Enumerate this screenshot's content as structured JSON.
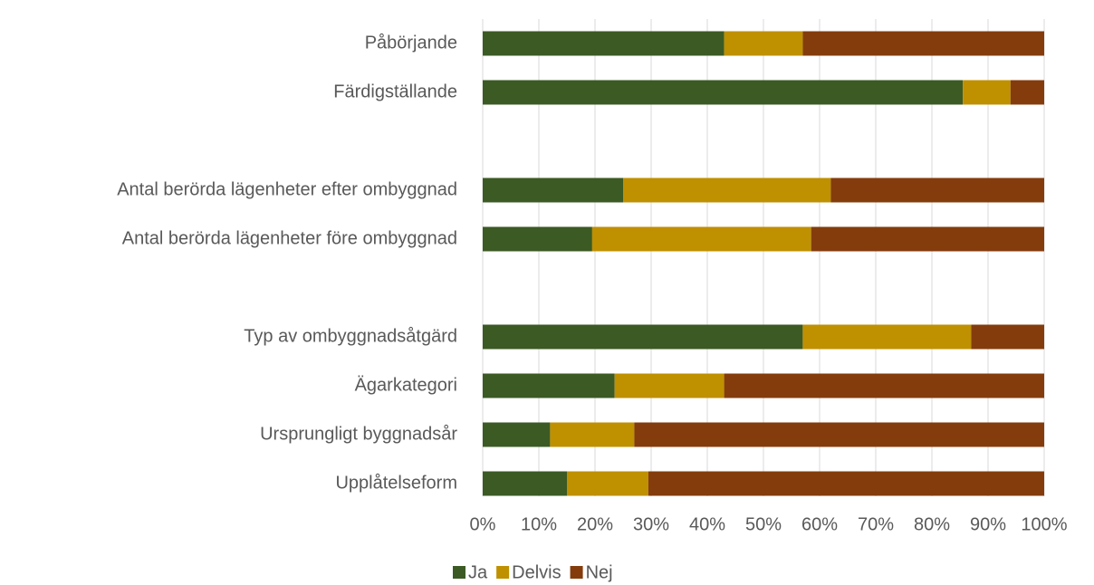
{
  "chart_data": {
    "type": "stacked-barh",
    "categories": [
      "Påbörjande",
      "Färdigställande",
      null,
      "Antal berörda lägenheter efter ombyggnad",
      "Antal berörda lägenheter före ombyggnad",
      null,
      "Typ av ombyggnadsåtgärd",
      "Ägarkategori",
      "Ursprungligt byggnadsår",
      "Upplåtelseform"
    ],
    "series": [
      {
        "name": "Ja",
        "color": "#3b5a24",
        "values": [
          43,
          85.5,
          null,
          25,
          19.5,
          null,
          57,
          23.5,
          12,
          15
        ]
      },
      {
        "name": "Delvis",
        "color": "#bf9000",
        "values": [
          14,
          8.5,
          null,
          37,
          39,
          null,
          30,
          19.5,
          15,
          14.5
        ]
      },
      {
        "name": "Nej",
        "color": "#843c0c",
        "values": [
          43,
          6,
          null,
          38,
          41.5,
          null,
          13,
          57,
          73,
          70.5
        ]
      }
    ],
    "xlim": [
      0,
      100
    ],
    "xticks": [
      {
        "value": 0,
        "label": "0%"
      },
      {
        "value": 10,
        "label": "10%"
      },
      {
        "value": 20,
        "label": "20%"
      },
      {
        "value": 30,
        "label": "30%"
      },
      {
        "value": 40,
        "label": "40%"
      },
      {
        "value": 50,
        "label": "50%"
      },
      {
        "value": 60,
        "label": "60%"
      },
      {
        "value": 70,
        "label": "70%"
      },
      {
        "value": 80,
        "label": "80%"
      },
      {
        "value": 90,
        "label": "90%"
      },
      {
        "value": 100,
        "label": "100%"
      }
    ],
    "grid": true,
    "legend": "bottom"
  }
}
